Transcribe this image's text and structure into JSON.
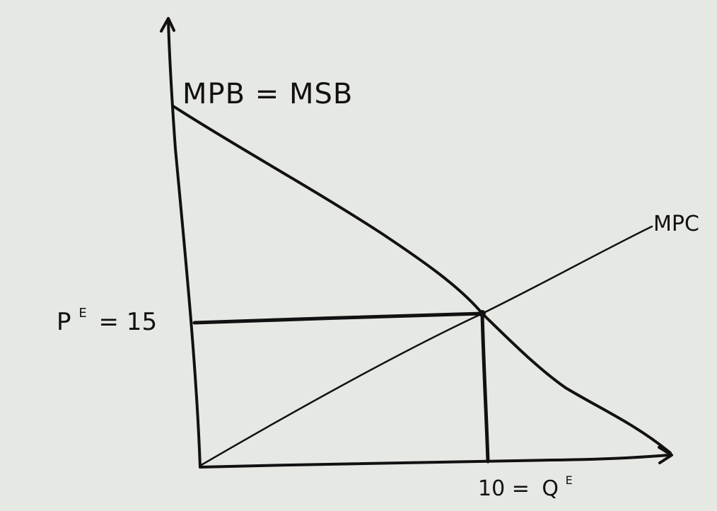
{
  "labels": {
    "demand_curve": "MPB = MSB",
    "supply_curve": "MPC",
    "price_axis_symbol": "P",
    "price_axis_superscript": "E",
    "price_axis_value": "= 15",
    "quantity_axis_value": "10 =",
    "quantity_axis_symbol": "Q",
    "quantity_axis_superscript": "E"
  },
  "equilibrium": {
    "price": 15,
    "quantity": 10
  },
  "colors": {
    "background": "#e6e8e4",
    "ink": "#111111"
  }
}
